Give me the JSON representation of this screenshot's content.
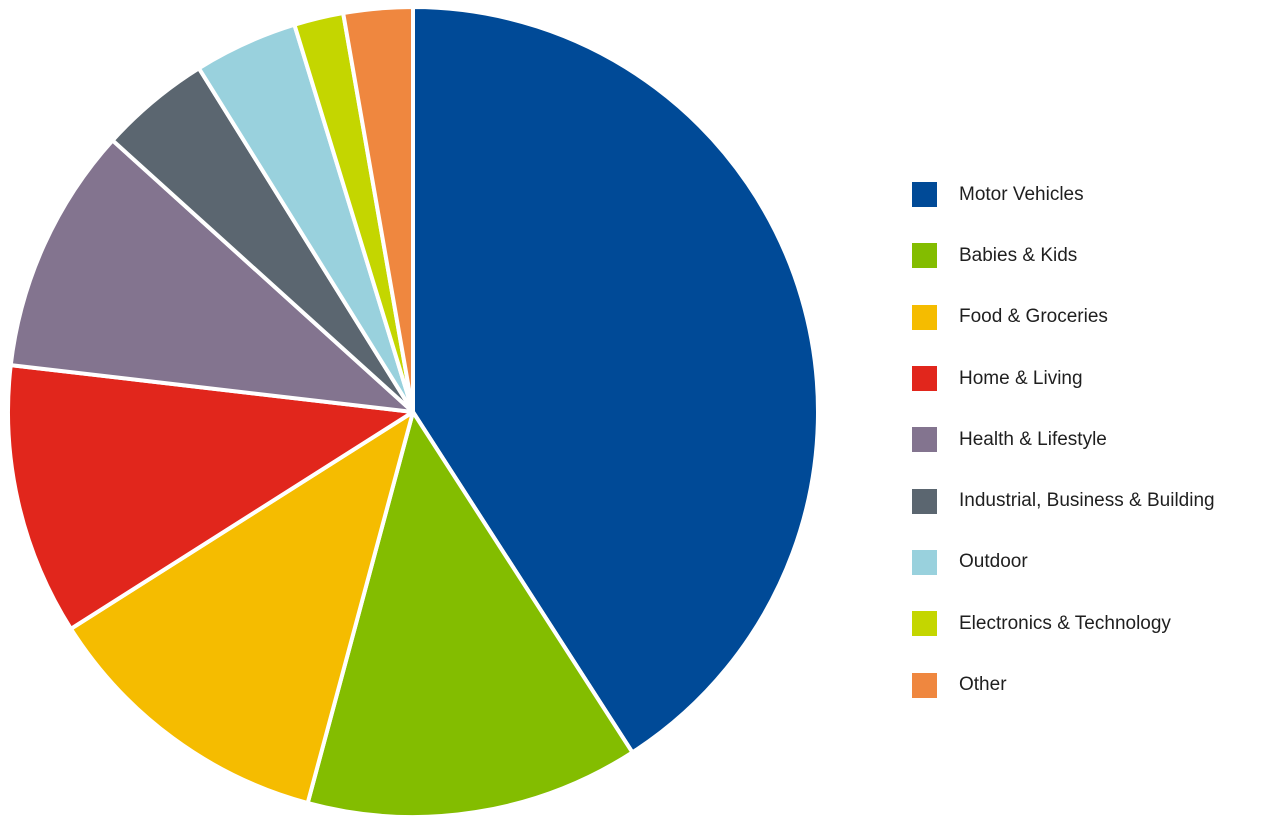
{
  "chart_data": {
    "type": "pie",
    "title": "",
    "legend_position": "right",
    "start_angle_deg": 0,
    "direction": "clockwise",
    "series": [
      {
        "categories": [
          "Motor Vehicles",
          "Babies & Kids",
          "Food & Groceries",
          "Home & Living",
          "Health & Lifestyle",
          "Industrial, Business & Building",
          "Outdoor",
          "Electronics & Technology",
          "Other"
        ],
        "values": [
          41.5,
          13.5,
          12.0,
          11.0,
          10.0,
          4.5,
          4.2,
          2.0,
          2.8
        ],
        "colors": [
          "#004a97",
          "#83bd00",
          "#f5bc00",
          "#e1261c",
          "#83748f",
          "#5b6670",
          "#99d1dd",
          "#c4d600",
          "#ef873f"
        ]
      }
    ]
  }
}
